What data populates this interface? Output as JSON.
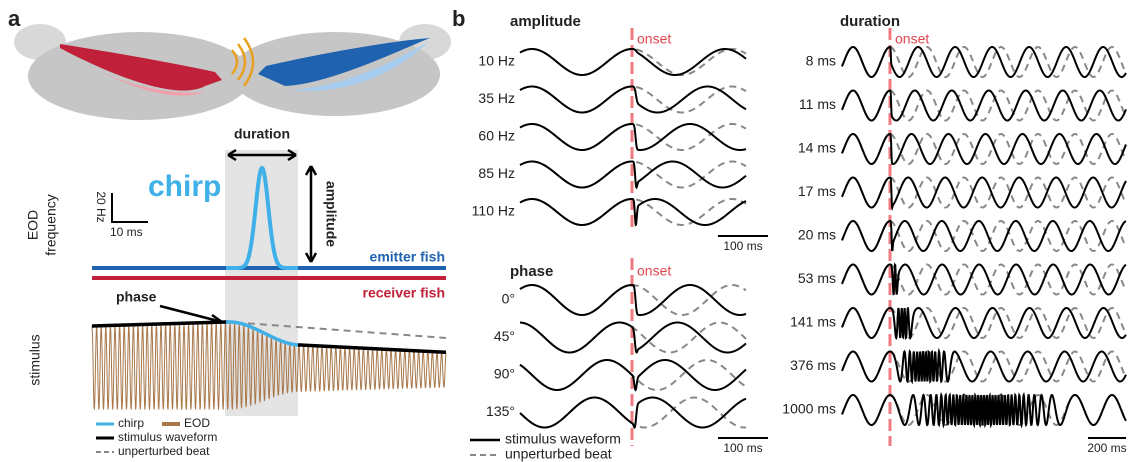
{
  "panel_a": {
    "label": "a",
    "duration": "duration",
    "amplitude": "amplitude",
    "chirp": "chirp",
    "scale_y": "20 Hz",
    "scale_x": "10 ms",
    "y_label": [
      "EOD",
      "frequency"
    ],
    "emitter": "emitter fish",
    "receiver": "receiver fish",
    "phase": "phase",
    "stimulus": "stimulus",
    "legend": [
      "chirp",
      "EOD",
      "stimulus waveform",
      "unperturbed beat"
    ]
  },
  "panel_b": {
    "label": "b",
    "amplitude": {
      "title": "amplitude",
      "onset": "onset",
      "rows": [
        "10 Hz",
        "35 Hz",
        "60 Hz",
        "85 Hz",
        "110 Hz"
      ],
      "scale": "100 ms"
    },
    "phase": {
      "title": "phase",
      "onset": "onset",
      "rows": [
        "0°",
        "45°",
        "90°",
        "135°"
      ],
      "scale": "100 ms"
    },
    "duration": {
      "title": "duration",
      "onset": "onset",
      "rows": [
        "8 ms",
        "11 ms",
        "14 ms",
        "17 ms",
        "20 ms",
        "53 ms",
        "141 ms",
        "376 ms",
        "1000 ms"
      ],
      "scale": "200 ms"
    },
    "legend": [
      "stimulus waveform",
      "unperturbed beat"
    ]
  }
}
